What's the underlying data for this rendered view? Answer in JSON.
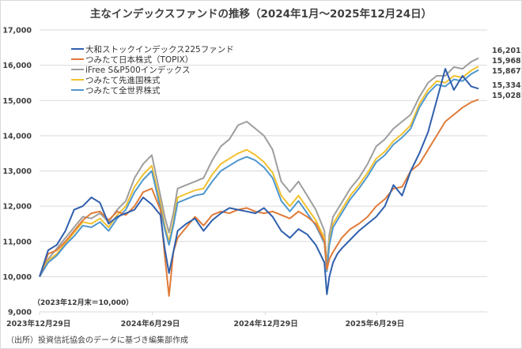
{
  "chart_data": {
    "type": "line",
    "title": "主なインデックスファンドの推移（2024年1月～2025年12月24日）",
    "xlabel": "",
    "ylabel": "",
    "ylim": [
      9000,
      17000
    ],
    "yticks": [
      9000,
      10000,
      11000,
      12000,
      13000,
      14000,
      15000,
      16000,
      17000
    ],
    "ytick_labels": [
      "9,000",
      "10,000",
      "11,000",
      "12,000",
      "13,000",
      "14,000",
      "15,000",
      "16,000",
      "17,000"
    ],
    "xlim_days": [
      0,
      726
    ],
    "xticks": [
      {
        "day": 0,
        "label": "2023年12月29日"
      },
      {
        "day": 183,
        "label": "2024年6月29日"
      },
      {
        "day": 366,
        "label": "2024年12月29日"
      },
      {
        "day": 547,
        "label": "2025年6月29日"
      }
    ],
    "grid": true,
    "legend_position": "top-left",
    "baseline_note": "（2023年12月末＝10,000）",
    "x_days": [
      0,
      14,
      28,
      42,
      56,
      70,
      84,
      98,
      112,
      126,
      140,
      154,
      168,
      182,
      196,
      203,
      210,
      217,
      224,
      238,
      252,
      266,
      280,
      294,
      308,
      322,
      336,
      350,
      364,
      378,
      392,
      406,
      420,
      434,
      448,
      462,
      466,
      470,
      476,
      483,
      490,
      504,
      518,
      532,
      546,
      560,
      574,
      588,
      602,
      616,
      630,
      644,
      658,
      672,
      686,
      700,
      712
    ],
    "series": [
      {
        "name": "大和ストックインデックス225ファンド",
        "color": "#2f5fad",
        "values": [
          10000,
          10750,
          10900,
          11300,
          11900,
          12000,
          12250,
          12100,
          11500,
          11700,
          11800,
          11900,
          12250,
          12050,
          11750,
          10800,
          10100,
          10700,
          11300,
          11500,
          11650,
          11300,
          11600,
          11800,
          11950,
          11900,
          11850,
          11800,
          11950,
          11700,
          11300,
          11100,
          11350,
          11200,
          10900,
          10400,
          9500,
          10000,
          10400,
          10650,
          10800,
          11050,
          11300,
          11500,
          11700,
          12000,
          12600,
          12300,
          13000,
          13500,
          14100,
          15000,
          15900,
          15300,
          15700,
          15400,
          15334
        ]
      },
      {
        "name": "つみたて日本株式（TOPIX）",
        "color": "#e07b39",
        "values": [
          10000,
          10650,
          10750,
          11000,
          11300,
          11600,
          11800,
          11850,
          11600,
          11850,
          11750,
          12000,
          12400,
          12500,
          11900,
          10600,
          9450,
          10700,
          11100,
          11400,
          11700,
          11450,
          11750,
          11850,
          11800,
          11900,
          11950,
          11850,
          11800,
          11850,
          11750,
          11650,
          11850,
          11700,
          11500,
          11000,
          10200,
          10500,
          10700,
          10900,
          11100,
          11350,
          11500,
          11700,
          12000,
          12200,
          12500,
          12550,
          13000,
          13200,
          13600,
          14000,
          14400,
          14600,
          14800,
          14950,
          15028
        ]
      },
      {
        "name": "iFree S&P500インデックス",
        "color": "#9e9e9e",
        "values": [
          10000,
          10500,
          10800,
          11100,
          11400,
          11700,
          11650,
          11800,
          11550,
          11900,
          12150,
          12800,
          13200,
          13450,
          12300,
          11700,
          11250,
          11800,
          12500,
          12600,
          12700,
          12800,
          13300,
          13700,
          13900,
          14300,
          14400,
          14200,
          14000,
          13600,
          12700,
          12400,
          12700,
          12300,
          11900,
          11300,
          10300,
          11200,
          11700,
          11900,
          12100,
          12500,
          12800,
          13200,
          13700,
          13900,
          14200,
          14400,
          14600,
          15100,
          15500,
          15700,
          15700,
          15950,
          15900,
          16100,
          16201
        ]
      },
      {
        "name": "つみたて先進国株式",
        "color": "#f2c12e",
        "values": [
          10000,
          10450,
          10650,
          10950,
          11250,
          11550,
          11500,
          11650,
          11400,
          11750,
          12000,
          12550,
          12900,
          13150,
          12100,
          11450,
          11000,
          11550,
          12250,
          12350,
          12450,
          12500,
          12900,
          13200,
          13350,
          13500,
          13600,
          13450,
          13250,
          12950,
          12300,
          12000,
          12300,
          11950,
          11600,
          11100,
          10200,
          11000,
          11500,
          11700,
          11900,
          12300,
          12600,
          12950,
          13350,
          13550,
          13850,
          14050,
          14300,
          14900,
          15300,
          15550,
          15500,
          15700,
          15650,
          15850,
          15968
        ]
      },
      {
        "name": "つみたて全世界株式",
        "color": "#4f97cf",
        "values": [
          10000,
          10400,
          10600,
          10900,
          11150,
          11450,
          11400,
          11550,
          11300,
          11650,
          11900,
          12400,
          12750,
          13000,
          11950,
          11350,
          10900,
          11450,
          12100,
          12200,
          12300,
          12350,
          12700,
          13000,
          13150,
          13300,
          13400,
          13300,
          13100,
          12800,
          12150,
          11850,
          12150,
          11800,
          11450,
          10950,
          10150,
          10900,
          11400,
          11600,
          11800,
          12200,
          12500,
          12850,
          13250,
          13450,
          13750,
          13950,
          14200,
          14800,
          15200,
          15450,
          15400,
          15600,
          15550,
          15750,
          15867
        ]
      }
    ],
    "end_labels": [
      "16,201",
      "15,968",
      "15,867",
      "15,334",
      "15,028"
    ]
  },
  "page": {
    "source": "（出所）投資信託協会のデータに基づき編集部作成"
  }
}
